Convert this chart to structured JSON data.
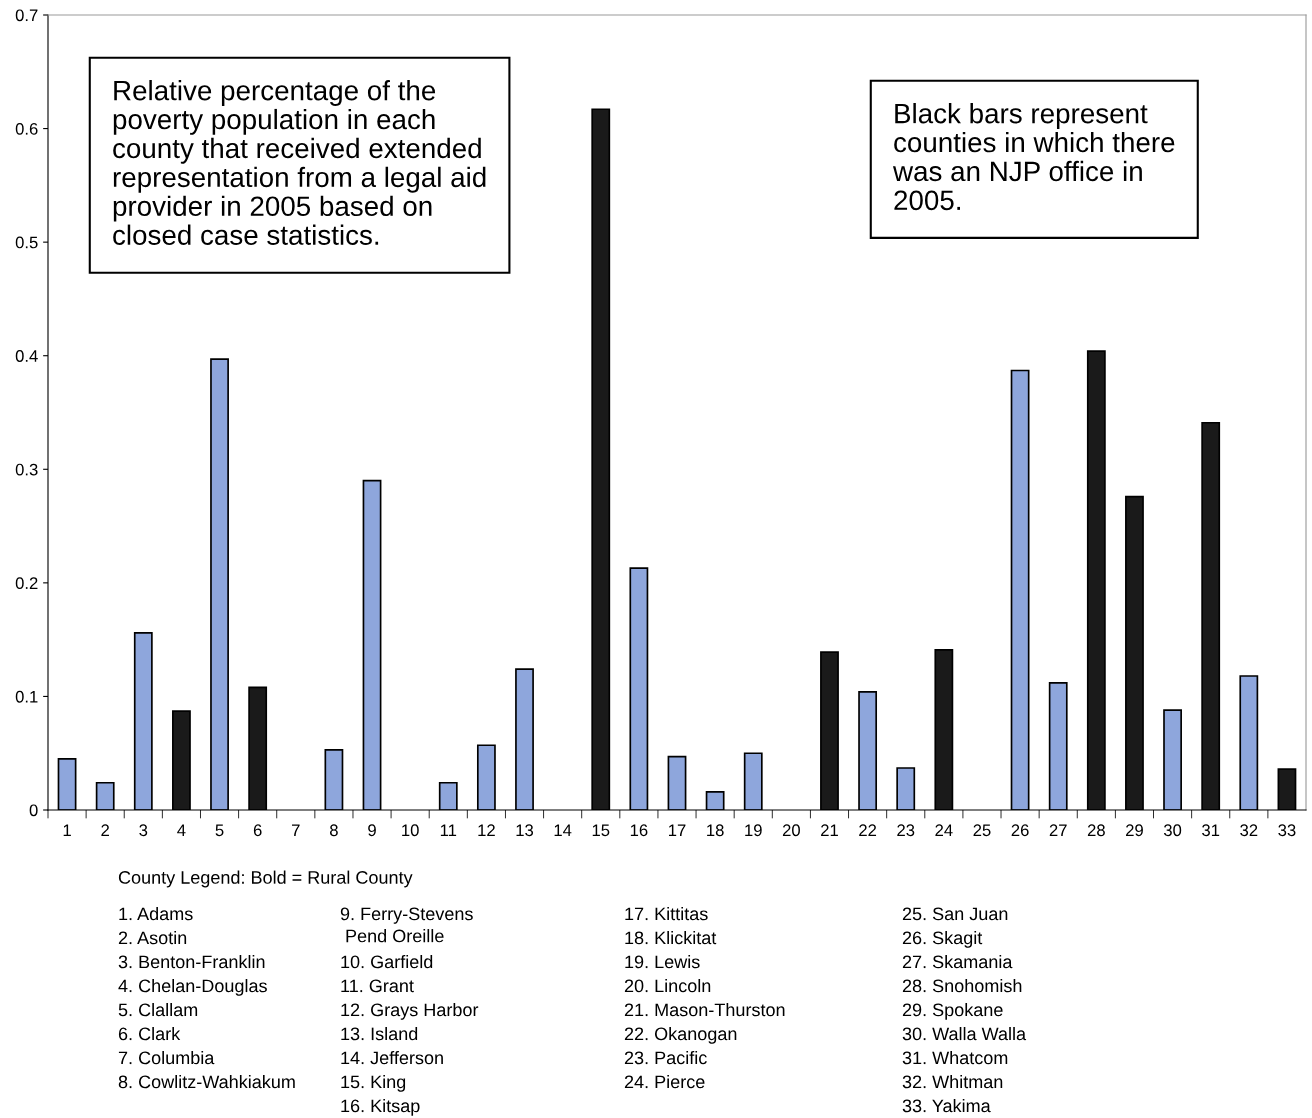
{
  "chart_data": {
    "type": "bar",
    "categories": [
      "1",
      "2",
      "3",
      "4",
      "5",
      "6",
      "7",
      "8",
      "9",
      "10",
      "11",
      "12",
      "13",
      "14",
      "15",
      "16",
      "17",
      "18",
      "19",
      "20",
      "21",
      "22",
      "23",
      "24",
      "25",
      "26",
      "27",
      "28",
      "29",
      "30",
      "31",
      "32",
      "33"
    ],
    "values": [
      0.045,
      0.024,
      0.156,
      0.087,
      0.397,
      0.108,
      0,
      0.053,
      0.29,
      0,
      0.024,
      0.057,
      0.124,
      0,
      0.617,
      0.213,
      0.047,
      0.016,
      0.05,
      0,
      0.139,
      0.104,
      0.037,
      0.141,
      0,
      0.387,
      0.112,
      0.404,
      0.276,
      0.088,
      0.341,
      0.118,
      0.036
    ],
    "colors": [
      "#8ea6dc",
      "#8ea6dc",
      "#8ea6dc",
      "#1a1a1a",
      "#8ea6dc",
      "#1a1a1a",
      "#8ea6dc",
      "#8ea6dc",
      "#8ea6dc",
      "#8ea6dc",
      "#8ea6dc",
      "#8ea6dc",
      "#8ea6dc",
      "#8ea6dc",
      "#1a1a1a",
      "#8ea6dc",
      "#8ea6dc",
      "#8ea6dc",
      "#8ea6dc",
      "#8ea6dc",
      "#1a1a1a",
      "#8ea6dc",
      "#8ea6dc",
      "#1a1a1a",
      "#8ea6dc",
      "#8ea6dc",
      "#8ea6dc",
      "#1a1a1a",
      "#1a1a1a",
      "#8ea6dc",
      "#1a1a1a",
      "#8ea6dc",
      "#1a1a1a"
    ],
    "ylim": [
      0,
      0.7
    ],
    "yticks": [
      0,
      0.1,
      0.2,
      0.3,
      0.4,
      0.5,
      0.6,
      0.7
    ],
    "grid": false,
    "annotations": [
      "Relative percentage of the\npoverty population in each\ncounty that received extended\nrepresentation from a legal aid\nprovider in 2005 based on\nclosed case statistics.",
      "Black bars represent\ncounties in which there\nwas an NJP office in\n2005.",
      "County Legend: Bold = Rural County",
      "1. Adams",
      "2. Asotin",
      "3. Benton-Franklin",
      "4. Chelan-Douglas",
      "5. Clallam",
      "6. Clark",
      "7. Columbia",
      "8. Cowlitz-Wahkiakum",
      "9. Ferry-Stevens\n Pend Oreille",
      "10. Garfield",
      "11. Grant",
      "12. Grays Harbor",
      "13. Island",
      "14. Jefferson",
      "15. King",
      "16. Kitsap",
      "17. Kittitas",
      "18. Klickitat",
      "19. Lewis",
      "20. Lincoln",
      "21. Mason-Thurston",
      "22. Okanogan",
      "23. Pacific",
      "24. Pierce",
      "25. San Juan",
      "26. Skagit",
      "27. Skamania",
      "28. Snohomish",
      "29. Spokane",
      "30. Walla Walla",
      "31. Whatcom",
      "32. Whitman",
      "33. Yakima"
    ]
  }
}
